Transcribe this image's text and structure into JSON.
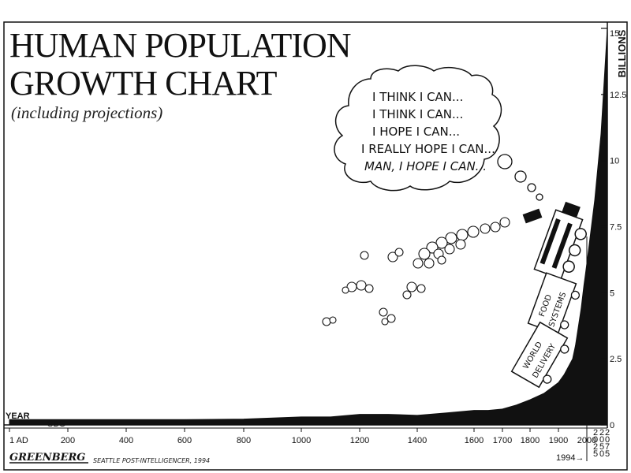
{
  "header": {
    "title_line1": "HUMAN POPULATION",
    "title_line2": "GROWTH CHART",
    "subtitle": "(including projections)"
  },
  "bubble": {
    "lines": [
      "I THINK I CAN...",
      "I THINK I CAN...",
      "I HOPE I CAN...",
      "I REALLY HOPE I CAN...",
      "MAN, I HOPE I CAN..."
    ]
  },
  "train": {
    "car1": [
      "FOOD",
      "SYSTEMS"
    ],
    "car2": [
      "WORLD",
      "DELIVERY"
    ]
  },
  "chart_data": {
    "type": "area",
    "ylabel": "BILLIONS",
    "xlabel": "YEAR",
    "ylim": [
      0,
      15
    ],
    "y_ticks": [
      "0",
      "2.5",
      "5",
      "7.5",
      "10",
      "12.5",
      "15"
    ],
    "x_tick_labels": [
      "1 AD",
      "200",
      "400",
      "600",
      "800",
      "1000",
      "1200",
      "1400",
      "1600",
      "1700",
      "1800",
      "1900",
      "2000"
    ],
    "projection_labels": [
      "2025",
      "2050",
      "2075"
    ],
    "marker_label": "1994→",
    "x": [
      1,
      200,
      400,
      600,
      800,
      1000,
      1100,
      1200,
      1300,
      1400,
      1500,
      1600,
      1650,
      1700,
      1750,
      1800,
      1850,
      1900,
      1920,
      1950,
      1960,
      1970,
      1980,
      1990,
      1994,
      2000,
      2025,
      2050,
      2075
    ],
    "series": [
      {
        "values": [
          0.2,
          0.2,
          0.2,
          0.2,
          0.22,
          0.3,
          0.3,
          0.4,
          0.4,
          0.36,
          0.45,
          0.55,
          0.55,
          0.6,
          0.75,
          0.95,
          1.2,
          1.6,
          1.9,
          2.5,
          3.0,
          3.7,
          4.4,
          5.3,
          5.6,
          6.1,
          8.5,
          11.0,
          15.0
        ]
      }
    ]
  },
  "credits": {
    "signature": "GREENBERG",
    "publication": "SEATTLE POST-INTELLIGENCER, 1994",
    "mark": "SBG"
  }
}
